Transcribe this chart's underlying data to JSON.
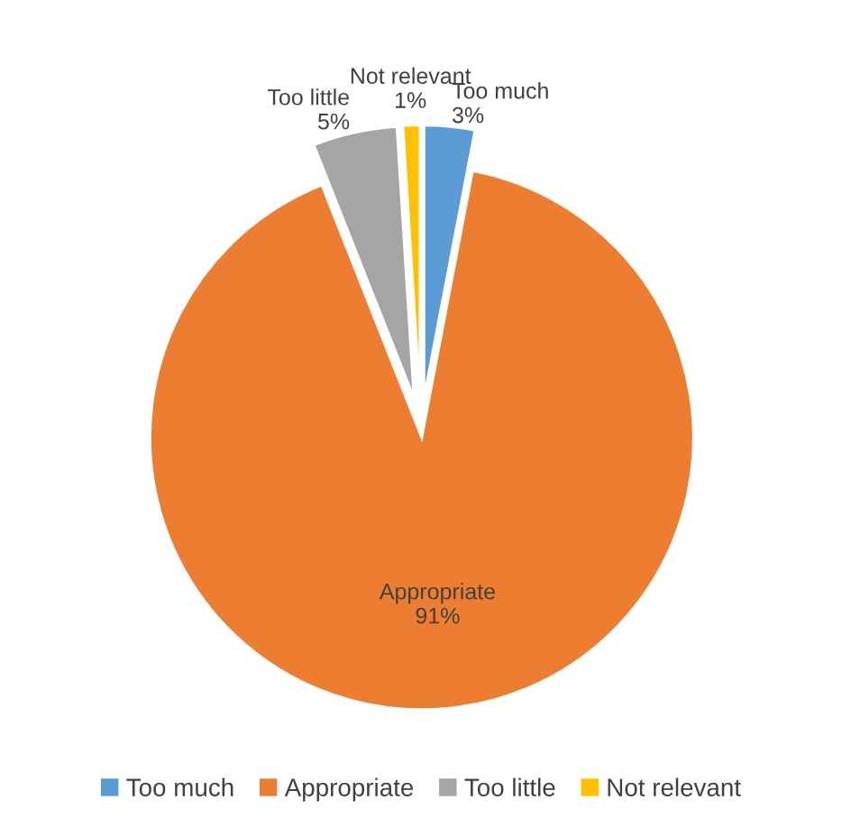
{
  "chart_data": {
    "type": "pie",
    "categories": [
      "Too much",
      "Appropriate",
      "Too little",
      "Not relevant"
    ],
    "values": [
      3,
      91,
      5,
      1
    ],
    "value_labels": [
      "3%",
      "91%",
      "5%",
      "1%"
    ],
    "colors": [
      "#5b9bd5",
      "#ed7d31",
      "#a5a5a5",
      "#ffc000"
    ],
    "legend": "bottom"
  }
}
